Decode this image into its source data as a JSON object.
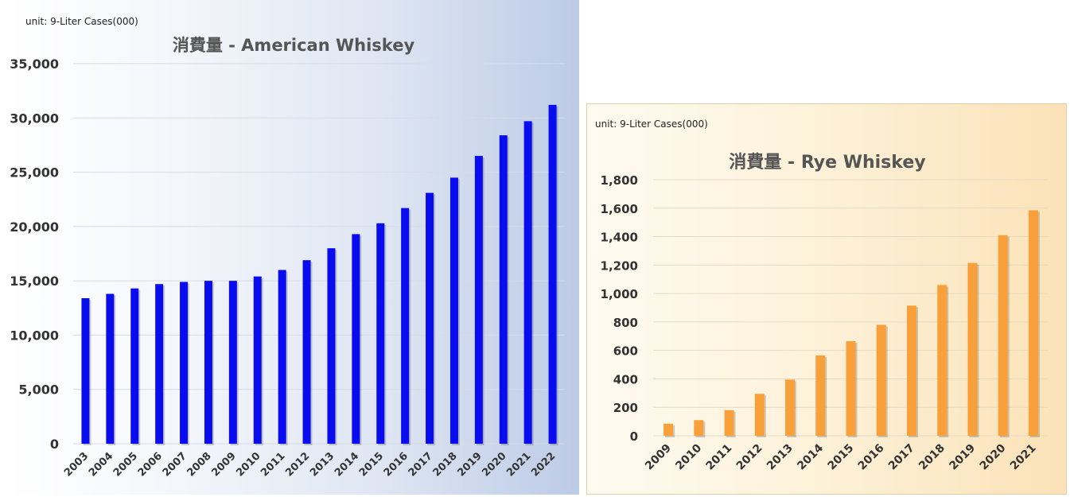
{
  "chart_data": [
    {
      "type": "bar",
      "unit_label": "unit:  9-Liter Cases(000)",
      "title": "消費量 - American Whiskey",
      "xlabel": "",
      "ylabel": "",
      "categories": [
        "2003",
        "2004",
        "2005",
        "2006",
        "2007",
        "2008",
        "2009",
        "2010",
        "2011",
        "2012",
        "2013",
        "2014",
        "2015",
        "2016",
        "2017",
        "2018",
        "2019",
        "2020",
        "2021",
        "2022"
      ],
      "values": [
        13400,
        13800,
        14300,
        14700,
        14900,
        15000,
        15000,
        15400,
        16000,
        16900,
        18000,
        19300,
        20300,
        21700,
        23100,
        24500,
        26500,
        28400,
        29700,
        31200
      ],
      "ylim": [
        0,
        35000
      ],
      "yticks": [
        "0",
        "5,000",
        "10,000",
        "15,000",
        "20,000",
        "25,000",
        "30,000",
        "35,000"
      ],
      "bar_color": "#0a0cf0",
      "grid": true,
      "legend": "none"
    },
    {
      "type": "bar",
      "unit_label": "unit:  9-Liter Cases(000)",
      "title": "消費量 - Rye Whiskey",
      "xlabel": "",
      "ylabel": "",
      "categories": [
        "2009",
        "2010",
        "2011",
        "2012",
        "2013",
        "2014",
        "2015",
        "2016",
        "2017",
        "2018",
        "2019",
        "2020",
        "2021"
      ],
      "values": [
        85,
        110,
        180,
        295,
        395,
        565,
        665,
        780,
        915,
        1060,
        1215,
        1410,
        1585
      ],
      "ylim": [
        0,
        1800
      ],
      "yticks": [
        "0",
        "200",
        "400",
        "600",
        "800",
        "1,000",
        "1,200",
        "1,400",
        "1,600",
        "1,800"
      ],
      "bar_color": "#f9a03a",
      "grid": true,
      "legend": "none"
    }
  ]
}
